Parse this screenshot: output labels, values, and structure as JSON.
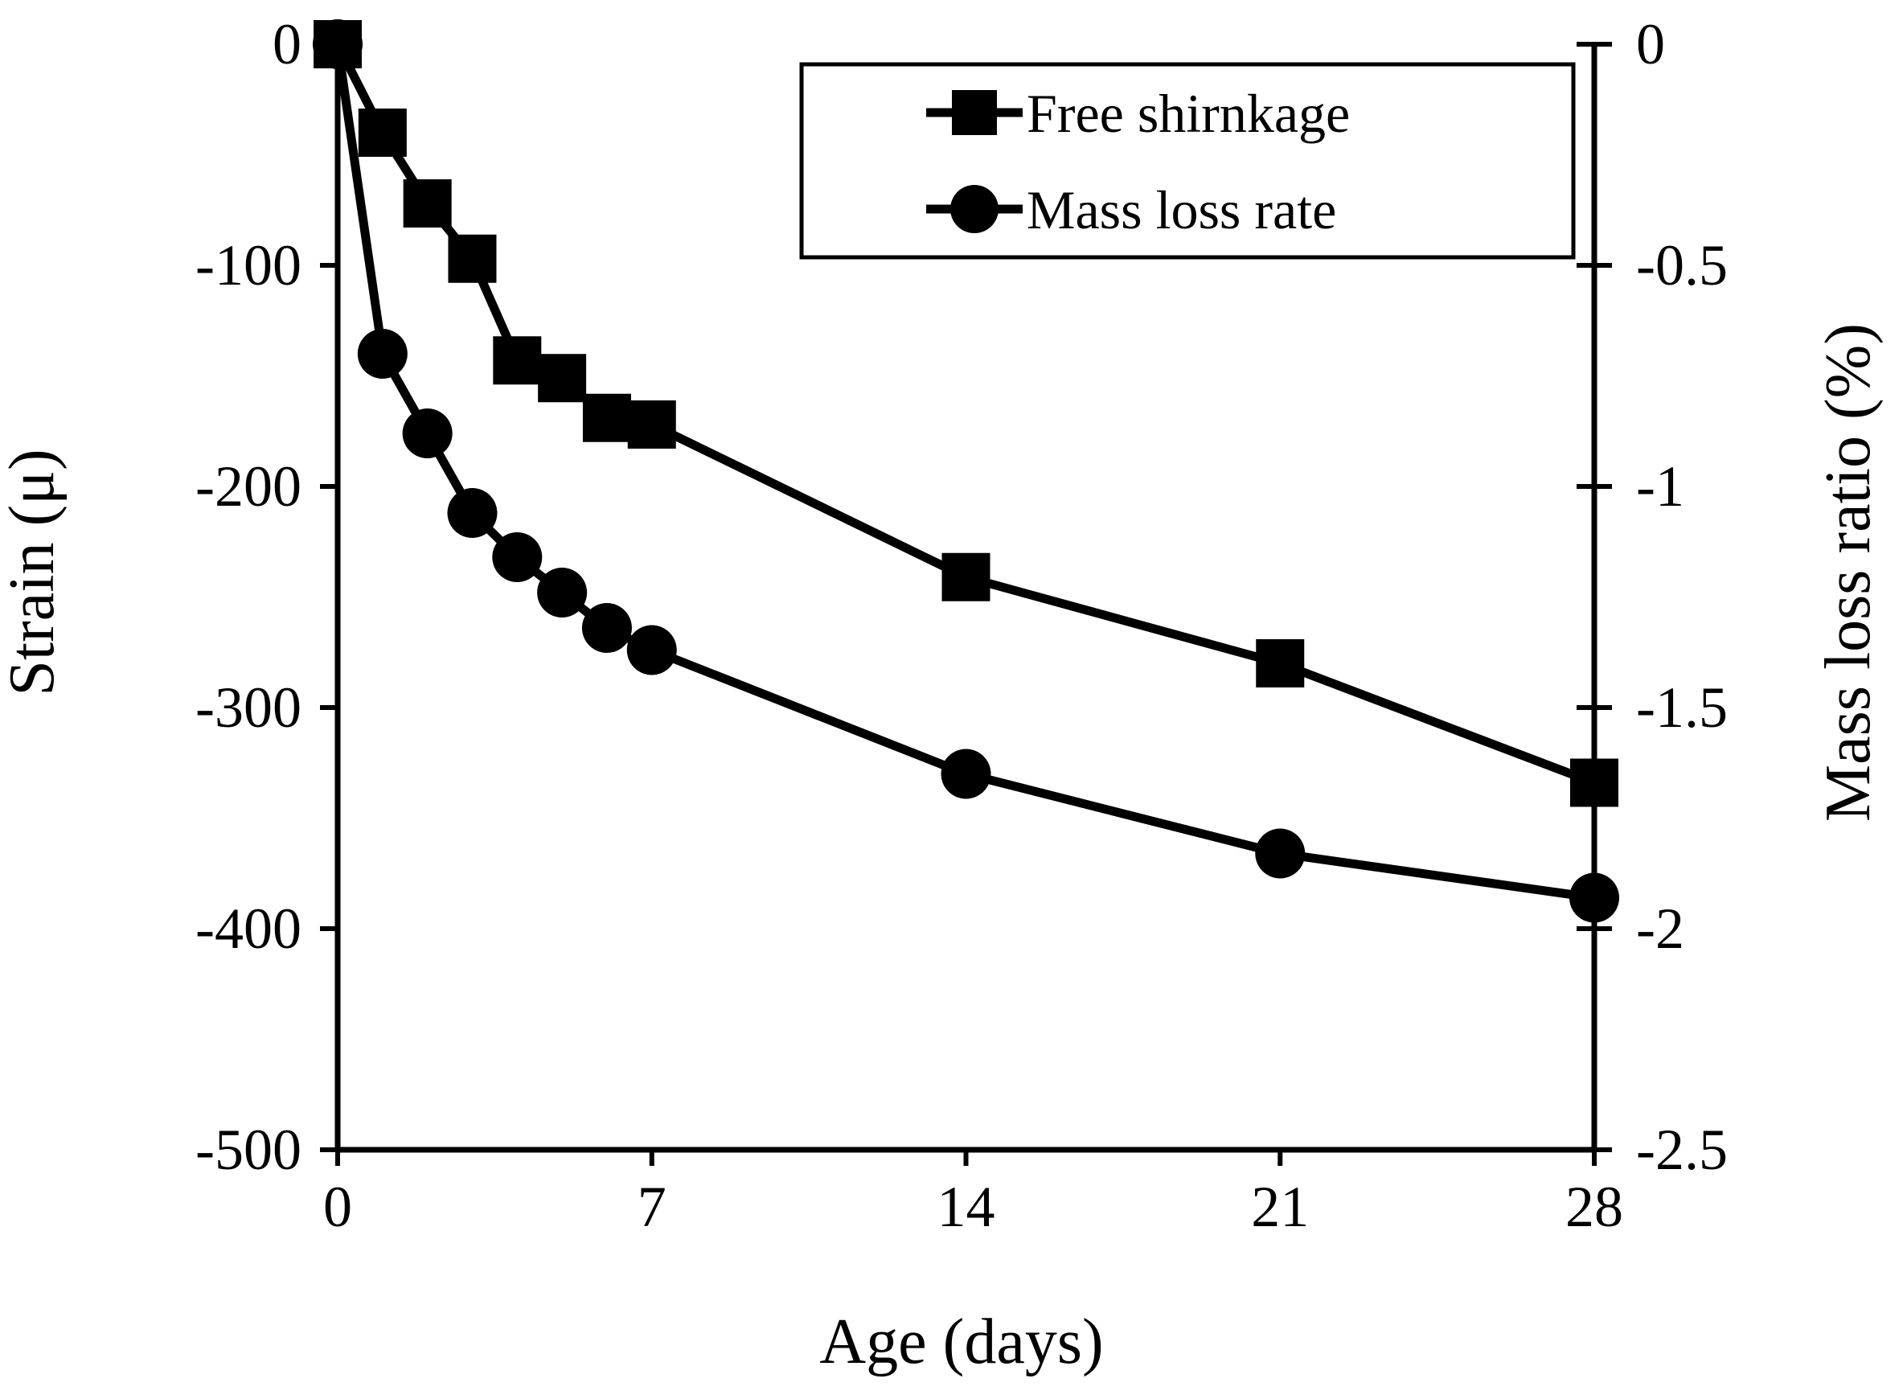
{
  "chart_data": {
    "type": "line",
    "title": "",
    "xlabel": "Age (days)",
    "ylabel": "Strain (μ)",
    "y2label": "Mass loss ratio (%)",
    "xlim": [
      0,
      28
    ],
    "ylim": [
      -500,
      0
    ],
    "y2lim": [
      -2.5,
      0
    ],
    "xticks": [
      0,
      7,
      14,
      21,
      28
    ],
    "xtick_labels": [
      "0",
      "7",
      "14",
      "21",
      "28"
    ],
    "yticks": [
      0,
      -100,
      -200,
      -300,
      -400,
      -500
    ],
    "ytick_labels": [
      "0",
      "-100",
      "-200",
      "-300",
      "-400",
      "-500"
    ],
    "y2ticks": [
      0,
      -0.5,
      -1,
      -1.5,
      -2,
      -2.5
    ],
    "y2tick_labels": [
      "0",
      "-0.5",
      "-1",
      "-1.5",
      "-2",
      "-2.5"
    ],
    "grid": false,
    "legend_position": "top-right",
    "series": [
      {
        "name": "Free shirnkage",
        "axis": "left",
        "marker": "square",
        "x": [
          0,
          1,
          2,
          3,
          4,
          5,
          6,
          7,
          14,
          21,
          28
        ],
        "values": [
          0,
          -40,
          -72,
          -97,
          -143,
          -151,
          -169,
          -172,
          -241,
          -280,
          -334
        ]
      },
      {
        "name": "Mass loss rate",
        "axis": "right",
        "marker": "circle",
        "x": [
          0,
          1,
          2,
          3,
          4,
          5,
          6,
          7,
          14,
          21,
          28
        ],
        "values": [
          0,
          -0.7,
          -0.88,
          -1.06,
          -1.16,
          -1.24,
          -1.32,
          -1.37,
          -1.65,
          -1.83,
          -1.93
        ]
      }
    ]
  }
}
